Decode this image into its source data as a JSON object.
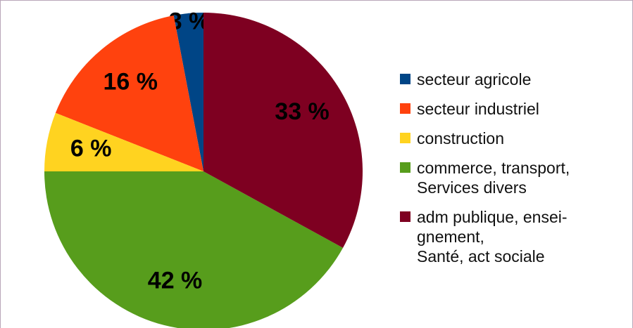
{
  "chart_data": {
    "type": "pie",
    "categories": [
      "secteur agricole",
      "secteur industriel",
      "construction",
      "commerce, transport,\nServices divers",
      "adm publique, ensei-\ngnement,\nSanté, act sociale"
    ],
    "values": [
      3,
      16,
      6,
      42,
      33
    ],
    "value_labels": [
      "3 %",
      "16 %",
      "6 %",
      "42 %",
      "33 %"
    ],
    "colors": [
      "#004586",
      "#ff420e",
      "#ffd320",
      "#579d1c",
      "#7e0021"
    ],
    "legend": "right"
  }
}
